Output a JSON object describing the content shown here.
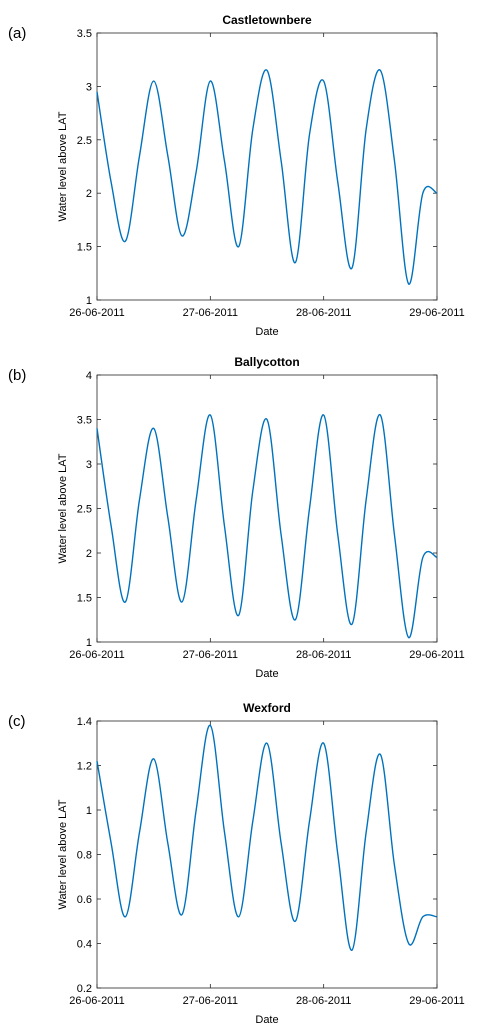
{
  "chart_data": [
    {
      "panel": "(a)",
      "type": "line",
      "title": "Castletownbere",
      "xlabel": "Date",
      "ylabel": "Water level above LAT",
      "xlim": [
        "26-06-2011",
        "29-06-2011"
      ],
      "x_ticks": [
        "26-06-2011",
        "27-06-2011",
        "28-06-2011",
        "29-06-2011"
      ],
      "ylim": [
        1,
        3.5
      ],
      "y_ticks": [
        "1",
        "1.5",
        "2",
        "2.5",
        "3",
        "3.5"
      ],
      "grid": false,
      "color": "#0072bd",
      "series": [
        {
          "x": [
            "26-06-2011 00:00",
            "26-06-2011 03:00",
            "26-06-2011 06:00",
            "26-06-2011 09:00",
            "26-06-2011 12:00",
            "26-06-2011 15:00",
            "26-06-2011 18:00",
            "26-06-2011 21:00",
            "27-06-2011 00:00",
            "27-06-2011 03:00",
            "27-06-2011 06:00",
            "27-06-2011 09:00",
            "27-06-2011 12:00",
            "27-06-2011 15:00",
            "27-06-2011 18:00",
            "27-06-2011 21:00",
            "28-06-2011 00:00",
            "28-06-2011 03:00",
            "28-06-2011 06:00",
            "28-06-2011 09:00",
            "28-06-2011 12:00",
            "28-06-2011 15:00",
            "28-06-2011 18:00",
            "28-06-2011 21:00",
            "29-06-2011 00:00"
          ],
          "values": [
            2.95,
            2.1,
            1.55,
            2.35,
            3.05,
            2.35,
            1.6,
            2.2,
            3.05,
            2.3,
            1.5,
            2.6,
            3.15,
            2.3,
            1.35,
            2.55,
            3.05,
            2.1,
            1.3,
            2.6,
            3.15,
            2.3,
            1.15,
            2.0,
            2.0
          ]
        }
      ]
    },
    {
      "panel": "(b)",
      "type": "line",
      "title": "Ballycotton",
      "xlabel": "Date",
      "ylabel": "Water level above LAT",
      "xlim": [
        "26-06-2011",
        "29-06-2011"
      ],
      "x_ticks": [
        "26-06-2011",
        "27-06-2011",
        "28-06-2011",
        "29-06-2011"
      ],
      "ylim": [
        1,
        4
      ],
      "y_ticks": [
        "1",
        "1.5",
        "2",
        "2.5",
        "3",
        "3.5",
        "4"
      ],
      "grid": false,
      "color": "#0072bd",
      "series": [
        {
          "x": [
            "26-06-2011 00:00",
            "26-06-2011 03:00",
            "26-06-2011 06:00",
            "26-06-2011 09:00",
            "26-06-2011 12:00",
            "26-06-2011 15:00",
            "26-06-2011 18:00",
            "26-06-2011 21:00",
            "27-06-2011 00:00",
            "27-06-2011 03:00",
            "27-06-2011 06:00",
            "27-06-2011 09:00",
            "27-06-2011 12:00",
            "27-06-2011 15:00",
            "27-06-2011 18:00",
            "27-06-2011 21:00",
            "28-06-2011 00:00",
            "28-06-2011 03:00",
            "28-06-2011 06:00",
            "28-06-2011 09:00",
            "28-06-2011 12:00",
            "28-06-2011 15:00",
            "28-06-2011 18:00",
            "28-06-2011 21:00",
            "29-06-2011 00:00"
          ],
          "values": [
            3.4,
            2.3,
            1.45,
            2.6,
            3.4,
            2.4,
            1.45,
            2.6,
            3.55,
            2.3,
            1.3,
            2.7,
            3.5,
            2.2,
            1.25,
            2.5,
            3.55,
            2.2,
            1.2,
            2.6,
            3.55,
            2.2,
            1.05,
            1.95,
            1.95
          ]
        }
      ]
    },
    {
      "panel": "(c)",
      "type": "line",
      "title": "Wexford",
      "xlabel": "Date",
      "ylabel": "Water level above LAT",
      "xlim": [
        "26-06-2011",
        "29-06-2011"
      ],
      "x_ticks": [
        "26-06-2011",
        "27-06-2011",
        "28-06-2011",
        "29-06-2011"
      ],
      "ylim": [
        0.2,
        1.4
      ],
      "y_ticks": [
        "0.2",
        "0.4",
        "0.6",
        "0.8",
        "1",
        "1.2",
        "1.4"
      ],
      "grid": false,
      "color": "#0072bd",
      "series": [
        {
          "x": [
            "26-06-2011 00:00",
            "26-06-2011 03:00",
            "26-06-2011 06:00",
            "26-06-2011 09:00",
            "26-06-2011 12:00",
            "26-06-2011 15:00",
            "26-06-2011 18:00",
            "26-06-2011 21:00",
            "27-06-2011 00:00",
            "27-06-2011 03:00",
            "27-06-2011 06:00",
            "27-06-2011 09:00",
            "27-06-2011 12:00",
            "27-06-2011 15:00",
            "27-06-2011 18:00",
            "27-06-2011 21:00",
            "28-06-2011 00:00",
            "28-06-2011 03:00",
            "28-06-2011 06:00",
            "28-06-2011 09:00",
            "28-06-2011 12:00",
            "28-06-2011 15:00",
            "28-06-2011 18:00",
            "28-06-2011 21:00",
            "29-06-2011 00:00"
          ],
          "values": [
            1.22,
            0.85,
            0.52,
            0.9,
            1.23,
            0.85,
            0.53,
            1.0,
            1.38,
            0.9,
            0.52,
            0.95,
            1.3,
            0.85,
            0.5,
            0.95,
            1.3,
            0.8,
            0.37,
            0.9,
            1.25,
            0.75,
            0.4,
            0.52,
            0.52
          ]
        }
      ]
    }
  ]
}
